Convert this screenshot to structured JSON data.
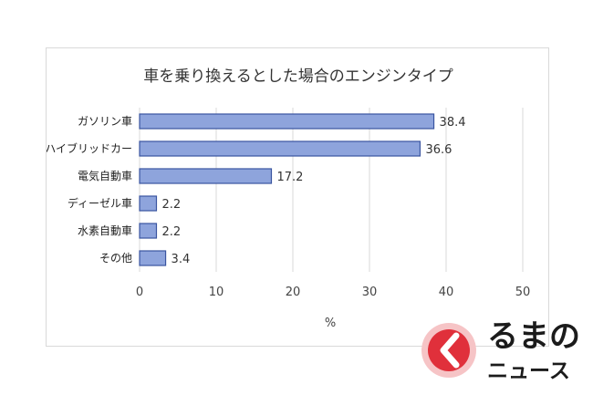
{
  "chart_data": {
    "type": "bar",
    "orientation": "horizontal",
    "title": "車を乗り換えるとした場合のエンジンタイプ",
    "xlabel": "%",
    "ylabel": "",
    "categories": [
      "ガソリン車",
      "ハイブリッドカー",
      "電気自動車",
      "ディーゼル車",
      "水素自動車",
      "その他"
    ],
    "values": [
      38.4,
      36.6,
      17.2,
      2.2,
      2.2,
      3.4
    ],
    "value_labels": [
      "38.4",
      "36.6",
      "17.2",
      "2.2",
      "2.2",
      "3.4"
    ],
    "xlim": [
      0,
      50
    ],
    "xticks": [
      "0",
      "10",
      "20",
      "30",
      "40",
      "50"
    ],
    "grid": "vertical",
    "legend": "none",
    "colors": {
      "bar_fill": "#8ea4dc",
      "bar_stroke": "#3a55a0",
      "grid": "#d9d9d9"
    }
  },
  "watermark": {
    "brand_line1": "るまの",
    "brand_line2": "ニュース",
    "logo_icon": "kuruma-logo-icon",
    "colors": {
      "red": "#e0303b",
      "pink": "#f6c4c6"
    }
  }
}
